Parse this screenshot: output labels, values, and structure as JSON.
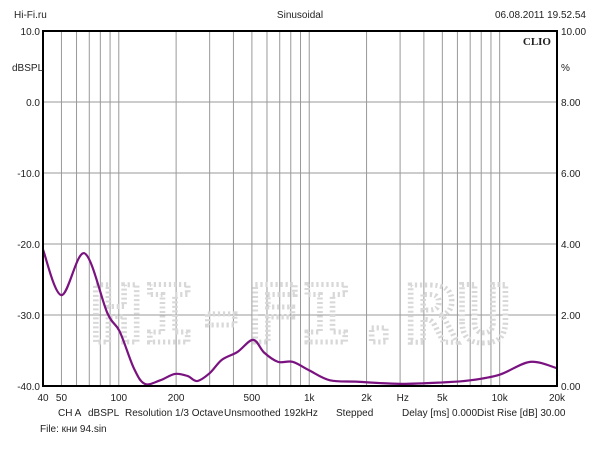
{
  "header": {
    "left": "Hi-Fi.ru",
    "center": "Sinusoidal",
    "right": "06.08.2011 19.52.54"
  },
  "brand": "CLIO",
  "watermark": "HI-FI.RU",
  "footer": {
    "settings": [
      "CH A",
      "dBSPL",
      "Resolution 1/3 Octave",
      "Unsmoothed",
      "192kHz",
      "Stepped",
      "Delay [ms] 0.000",
      "Dist Rise [dB] 30.00"
    ],
    "file": "File: кни 94.sin"
  },
  "chart_data": {
    "type": "line",
    "title": "Sinusoidal",
    "xlabel": "Hz",
    "ylabel": "dBSPL",
    "y2label": "%",
    "xscale": "log",
    "xlim": [
      40,
      20000
    ],
    "ylim": [
      -40,
      10
    ],
    "y2lim": [
      0,
      10
    ],
    "grid": true,
    "x_ticks": [
      {
        "v": 40,
        "label": "40"
      },
      {
        "v": 50,
        "label": "50"
      },
      {
        "v": 100,
        "label": "100"
      },
      {
        "v": 200,
        "label": "200"
      },
      {
        "v": 500,
        "label": "500"
      },
      {
        "v": 1000,
        "label": "1k"
      },
      {
        "v": 2000,
        "label": "2k"
      },
      {
        "v": 3100,
        "label": "Hz"
      },
      {
        "v": 5000,
        "label": "5k"
      },
      {
        "v": 10000,
        "label": "10k"
      },
      {
        "v": 20000,
        "label": "20k"
      }
    ],
    "x_grid": [
      40,
      50,
      60,
      70,
      80,
      90,
      100,
      200,
      300,
      400,
      500,
      600,
      700,
      800,
      900,
      1000,
      2000,
      3000,
      4000,
      5000,
      6000,
      7000,
      8000,
      9000,
      10000,
      20000
    ],
    "y_ticks": [
      "10.0",
      "0.0",
      "-10.0",
      "-20.0",
      "-30.0",
      "-40.0"
    ],
    "y_tick_values": [
      10,
      0,
      -10,
      -20,
      -30,
      -40
    ],
    "y2_ticks": [
      "10.00",
      "8.00",
      "6.00",
      "4.00",
      "2.00",
      "0.00"
    ],
    "series": [
      {
        "name": "CH A",
        "color": "#7a1380",
        "x": [
          40,
          50,
          66,
          87,
          101,
          120,
          137,
          165,
          197,
          230,
          258,
          300,
          348,
          420,
          507,
          580,
          686,
          818,
          1000,
          1286,
          1800,
          3000,
          5000,
          7000,
          10000,
          14450,
          20000
        ],
        "y": [
          -20.8,
          -27.2,
          -21.3,
          -29.7,
          -32.3,
          -37.5,
          -39.7,
          -39.2,
          -38.3,
          -38.6,
          -39.3,
          -38.2,
          -36.3,
          -35.2,
          -33.5,
          -35.3,
          -36.6,
          -36.6,
          -37.8,
          -39.2,
          -39.4,
          -39.7,
          -39.5,
          -39.2,
          -38.4,
          -36.6,
          -37.5
        ]
      }
    ]
  }
}
